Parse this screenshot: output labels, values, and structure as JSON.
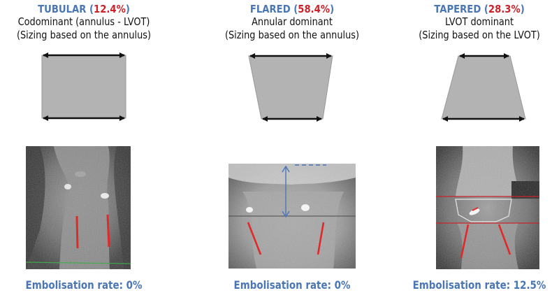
{
  "columns": [
    {
      "name": "TUBULAR",
      "pct": "12.4%",
      "desc": "Codominant (annulus - LVOT)",
      "sizing": "(Sizing based on the annulus)",
      "footer": "Embolisation rate: 0%"
    },
    {
      "name": "FLARED",
      "pct": "58.4%",
      "desc": "Annular dominant",
      "sizing": "(Sizing based on the annulus)",
      "footer": "Embolisation rate: 0%"
    },
    {
      "name": "TAPERED",
      "pct": "28.3%",
      "desc": "LVOT dominant",
      "sizing": "(Sizing based on the LVOT)",
      "footer": "Embolisation rate: 12.5%"
    }
  ],
  "colors": {
    "title_blue": "#4a76b6",
    "pct_red": "#cc2229",
    "shape_fill": "#b3b3b3",
    "measure_red": "#e02a2a"
  }
}
